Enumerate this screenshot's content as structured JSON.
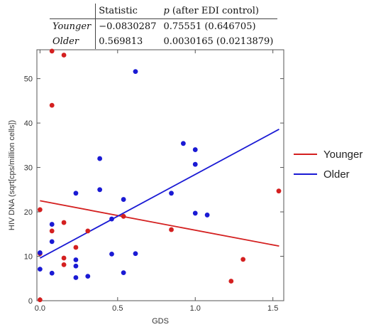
{
  "table": {
    "header": [
      "",
      "Statistic",
      "p",
      " (after EDI control)"
    ],
    "rows": [
      {
        "name": "Younger",
        "statistic": "−0.0830287",
        "p": "0.75551 (0.646705)"
      },
      {
        "name": "Older",
        "statistic": "0.569813",
        "p": "0.0030165 (0.0213879)"
      }
    ]
  },
  "chart_data": {
    "type": "scatter",
    "title": "",
    "xlabel": "GDS",
    "ylabel": "HIV DNA (sqrt[cps/million cells])",
    "xlim": [
      -0.02,
      1.57
    ],
    "ylim": [
      0,
      56.5
    ],
    "xticks": [
      0.0,
      0.5,
      1.0,
      1.5
    ],
    "xtick_labels": [
      "0.0",
      "0.5",
      "1.0",
      "1.5"
    ],
    "yticks": [
      0,
      10,
      20,
      30,
      40,
      50
    ],
    "ytick_labels": [
      "0",
      "10",
      "20",
      "30",
      "40",
      "50"
    ],
    "grid": false,
    "legend_position": "right",
    "series": [
      {
        "name": "Younger",
        "color": "#d42020",
        "points": [
          [
            0.0,
            0.2
          ],
          [
            0.0,
            20.5
          ],
          [
            0.0,
            10.6
          ],
          [
            0.077,
            56.2
          ],
          [
            0.077,
            44.0
          ],
          [
            0.077,
            15.7
          ],
          [
            0.154,
            55.3
          ],
          [
            0.154,
            17.6
          ],
          [
            0.154,
            9.6
          ],
          [
            0.154,
            8.1
          ],
          [
            0.231,
            12.0
          ],
          [
            0.308,
            15.7
          ],
          [
            0.538,
            19.0
          ],
          [
            0.846,
            16.0
          ],
          [
            1.231,
            4.4
          ],
          [
            1.308,
            9.3
          ],
          [
            1.538,
            24.7
          ]
        ],
        "fit": {
          "x": [
            0.0,
            1.54
          ],
          "y": [
            22.5,
            12.3
          ]
        }
      },
      {
        "name": "Older",
        "color": "#1a1ad4",
        "points": [
          [
            0.0,
            10.8
          ],
          [
            0.0,
            7.1
          ],
          [
            0.077,
            17.2
          ],
          [
            0.077,
            13.3
          ],
          [
            0.077,
            6.2
          ],
          [
            0.231,
            24.2
          ],
          [
            0.231,
            9.2
          ],
          [
            0.231,
            7.8
          ],
          [
            0.231,
            5.2
          ],
          [
            0.308,
            5.5
          ],
          [
            0.385,
            32.0
          ],
          [
            0.385,
            25.0
          ],
          [
            0.462,
            18.4
          ],
          [
            0.462,
            10.5
          ],
          [
            0.538,
            22.8
          ],
          [
            0.538,
            6.3
          ],
          [
            0.615,
            51.6
          ],
          [
            0.615,
            10.6
          ],
          [
            0.846,
            24.2
          ],
          [
            0.923,
            35.4
          ],
          [
            1.0,
            34.0
          ],
          [
            1.0,
            30.7
          ],
          [
            1.0,
            19.7
          ],
          [
            1.077,
            19.3
          ]
        ],
        "fit": {
          "x": [
            0.0,
            1.54
          ],
          "y": [
            9.6,
            38.6
          ]
        }
      }
    ]
  }
}
